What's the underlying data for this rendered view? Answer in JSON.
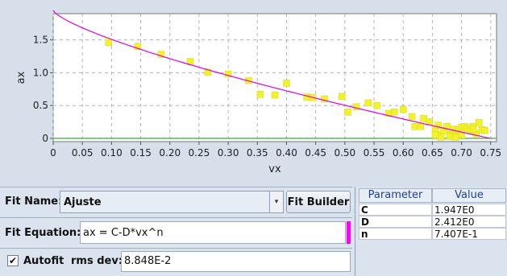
{
  "chart_data": {
    "type": "scatter",
    "xlabel": "vx",
    "ylabel": "ax",
    "xlim": [
      0,
      0.76
    ],
    "ylim": [
      -0.05,
      1.9
    ],
    "x_ticks": [
      "0",
      "0.05",
      "0.10",
      "0.15",
      "0.20",
      "0.25",
      "0.30",
      "0.35",
      "0.40",
      "0.45",
      "0.50",
      "0.55",
      "0.60",
      "0.65",
      "0.70",
      "0.75"
    ],
    "y_ticks": [
      "0",
      "0.5",
      "1.0",
      "1.5"
    ],
    "points": [
      [
        0.095,
        1.46
      ],
      [
        0.145,
        1.4
      ],
      [
        0.185,
        1.28
      ],
      [
        0.235,
        1.17
      ],
      [
        0.265,
        1.01
      ],
      [
        0.3,
        0.98
      ],
      [
        0.335,
        0.88
      ],
      [
        0.355,
        0.67
      ],
      [
        0.38,
        0.66
      ],
      [
        0.4,
        0.84
      ],
      [
        0.435,
        0.63
      ],
      [
        0.445,
        0.62
      ],
      [
        0.465,
        0.6
      ],
      [
        0.495,
        0.64
      ],
      [
        0.505,
        0.4
      ],
      [
        0.52,
        0.48
      ],
      [
        0.54,
        0.54
      ],
      [
        0.555,
        0.5
      ],
      [
        0.575,
        0.38
      ],
      [
        0.585,
        0.4
      ],
      [
        0.6,
        0.44
      ],
      [
        0.615,
        0.33
      ],
      [
        0.62,
        0.18
      ],
      [
        0.63,
        0.18
      ],
      [
        0.635,
        0.3
      ],
      [
        0.645,
        0.25
      ],
      [
        0.655,
        0.14
      ],
      [
        0.66,
        0.2
      ],
      [
        0.665,
        0.06
      ],
      [
        0.67,
        0.12
      ],
      [
        0.675,
        0.18
      ],
      [
        0.68,
        0.06
      ],
      [
        0.685,
        0.14
      ],
      [
        0.69,
        0.08
      ],
      [
        0.695,
        0.13
      ],
      [
        0.7,
        0.17
      ],
      [
        0.705,
        0.18
      ],
      [
        0.71,
        0.15
      ],
      [
        0.715,
        0.12
      ],
      [
        0.72,
        0.18
      ],
      [
        0.725,
        0.07
      ],
      [
        0.73,
        0.24
      ],
      [
        0.735,
        0.13
      ],
      [
        0.74,
        0.12
      ],
      [
        0.665,
        0.02
      ],
      [
        0.68,
        0.03
      ],
      [
        0.7,
        0.05
      ],
      [
        0.655,
        0.05
      ],
      [
        0.69,
        0.02
      ],
      [
        0.72,
        0.14
      ]
    ],
    "fit": {
      "C": 1.947,
      "D": 2.412,
      "n": 0.7407
    },
    "colors": {
      "points": "#f2f22a",
      "fit_line": "#e000e0",
      "zero_line": "#22aa22",
      "background": "#ffffff"
    }
  },
  "fit_panel": {
    "fit_name_label": "Fit Name:",
    "fit_name_value": "Ajuste",
    "fit_builder_label": "Fit Builder",
    "fit_equation_label": "Fit Equation:",
    "fit_equation_value": "ax = C-D*vx^n",
    "autofit_label": "Autofit",
    "autofit_checked": "✔",
    "rms_dev_label": "rms dev:",
    "rms_dev_value": "8.848E-2"
  },
  "param_table": {
    "header_parameter": "Parameter",
    "header_value": "Value",
    "rows": [
      {
        "name": "C",
        "value": "1.947E0"
      },
      {
        "name": "D",
        "value": "2.412E0"
      },
      {
        "name": "n",
        "value": "7.407E-1"
      }
    ]
  }
}
